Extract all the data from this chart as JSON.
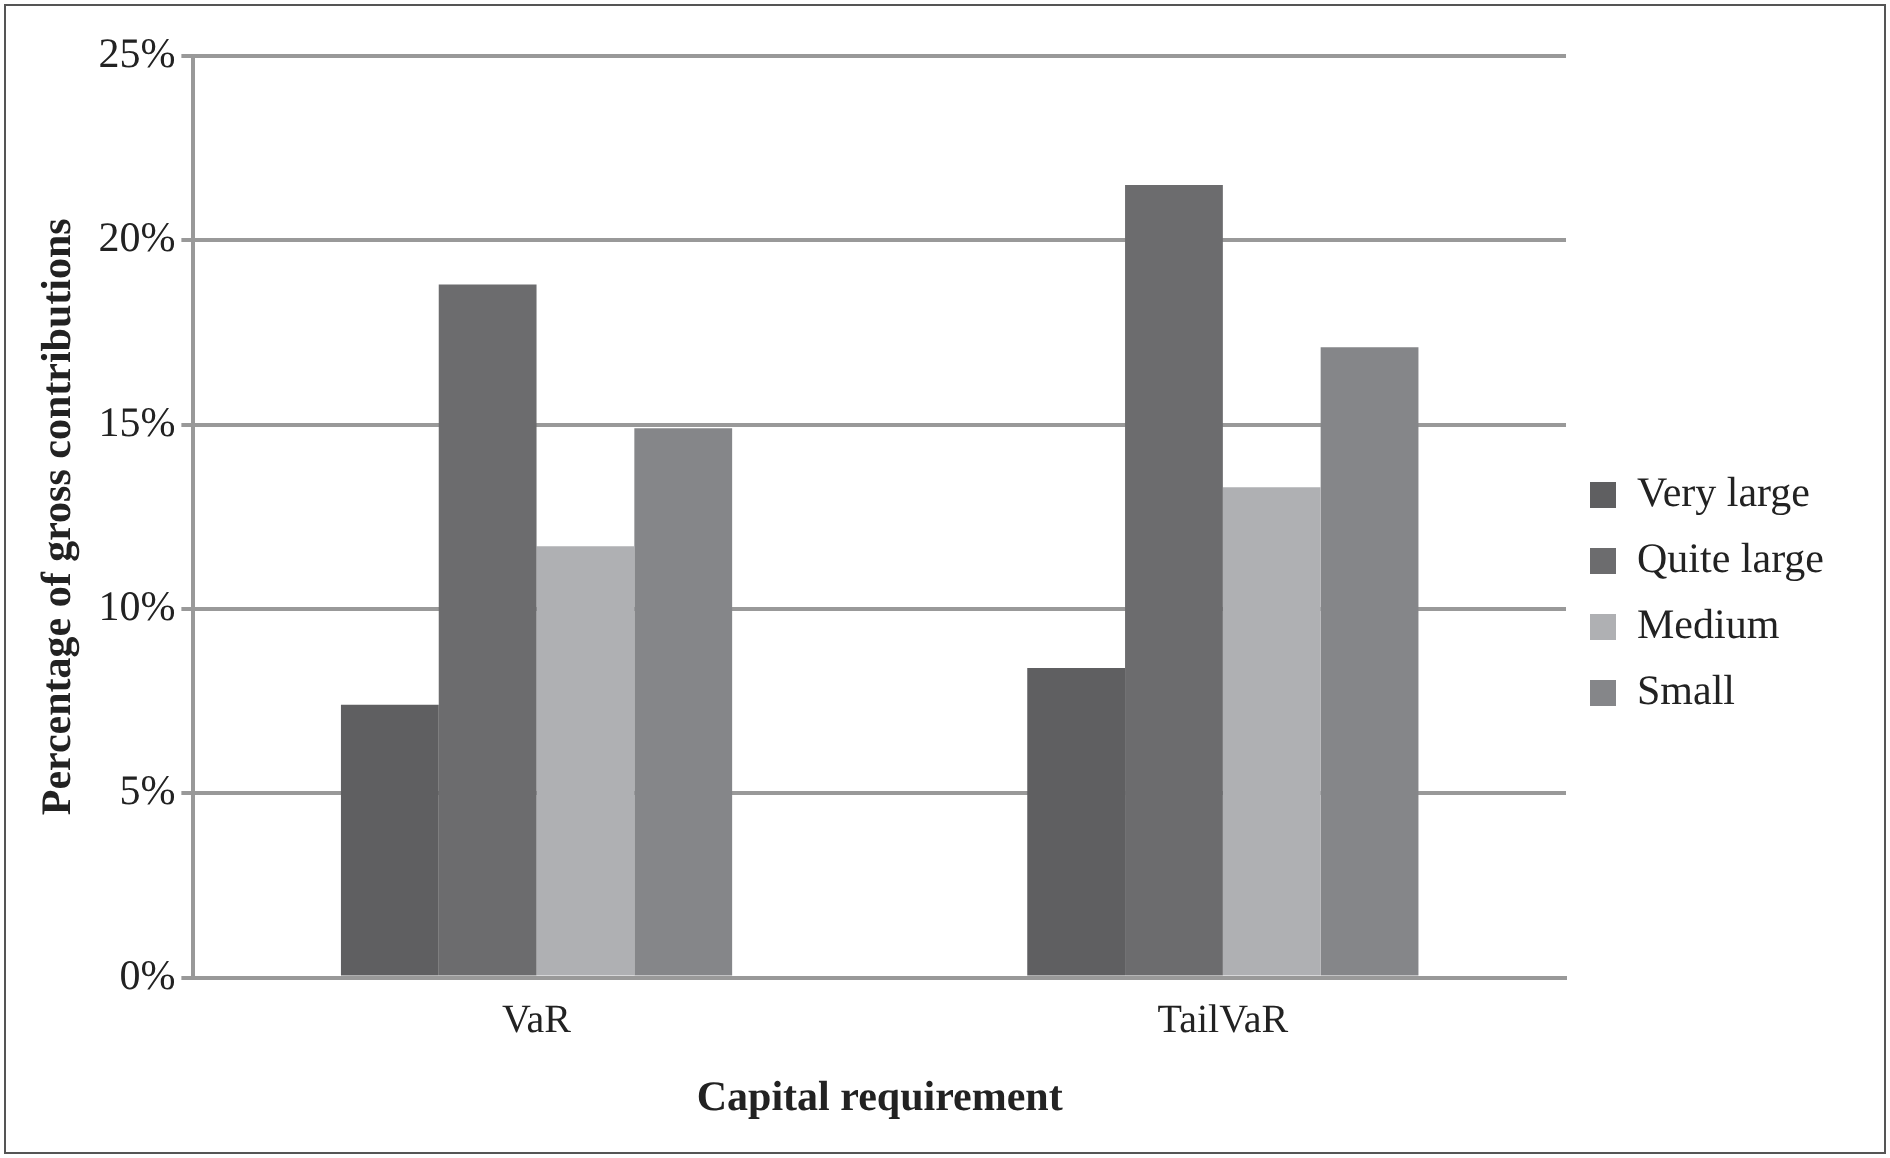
{
  "chart_data": {
    "type": "bar",
    "xlabel": "Capital requirement",
    "ylabel": "Percentage of gross contributions",
    "categories": [
      "VaR",
      "TailVaR"
    ],
    "series": [
      {
        "name": "Very large",
        "color": "#5f5f61",
        "values": [
          7.4,
          8.4
        ]
      },
      {
        "name": "Quite large",
        "color": "#6c6c6e",
        "values": [
          18.8,
          21.5
        ]
      },
      {
        "name": "Medium",
        "color": "#afb0b3",
        "values": [
          11.7,
          13.3
        ]
      },
      {
        "name": "Small",
        "color": "#858689",
        "values": [
          14.9,
          17.1
        ]
      }
    ],
    "ylim": [
      0,
      25
    ],
    "yticks": [
      {
        "value": 0,
        "label": "0%"
      },
      {
        "value": 5,
        "label": "5%"
      },
      {
        "value": 10,
        "label": "10%"
      },
      {
        "value": 15,
        "label": "15%"
      },
      {
        "value": 20,
        "label": "20%"
      },
      {
        "value": 25,
        "label": "25%"
      }
    ],
    "grid": "y",
    "legend": "right"
  }
}
